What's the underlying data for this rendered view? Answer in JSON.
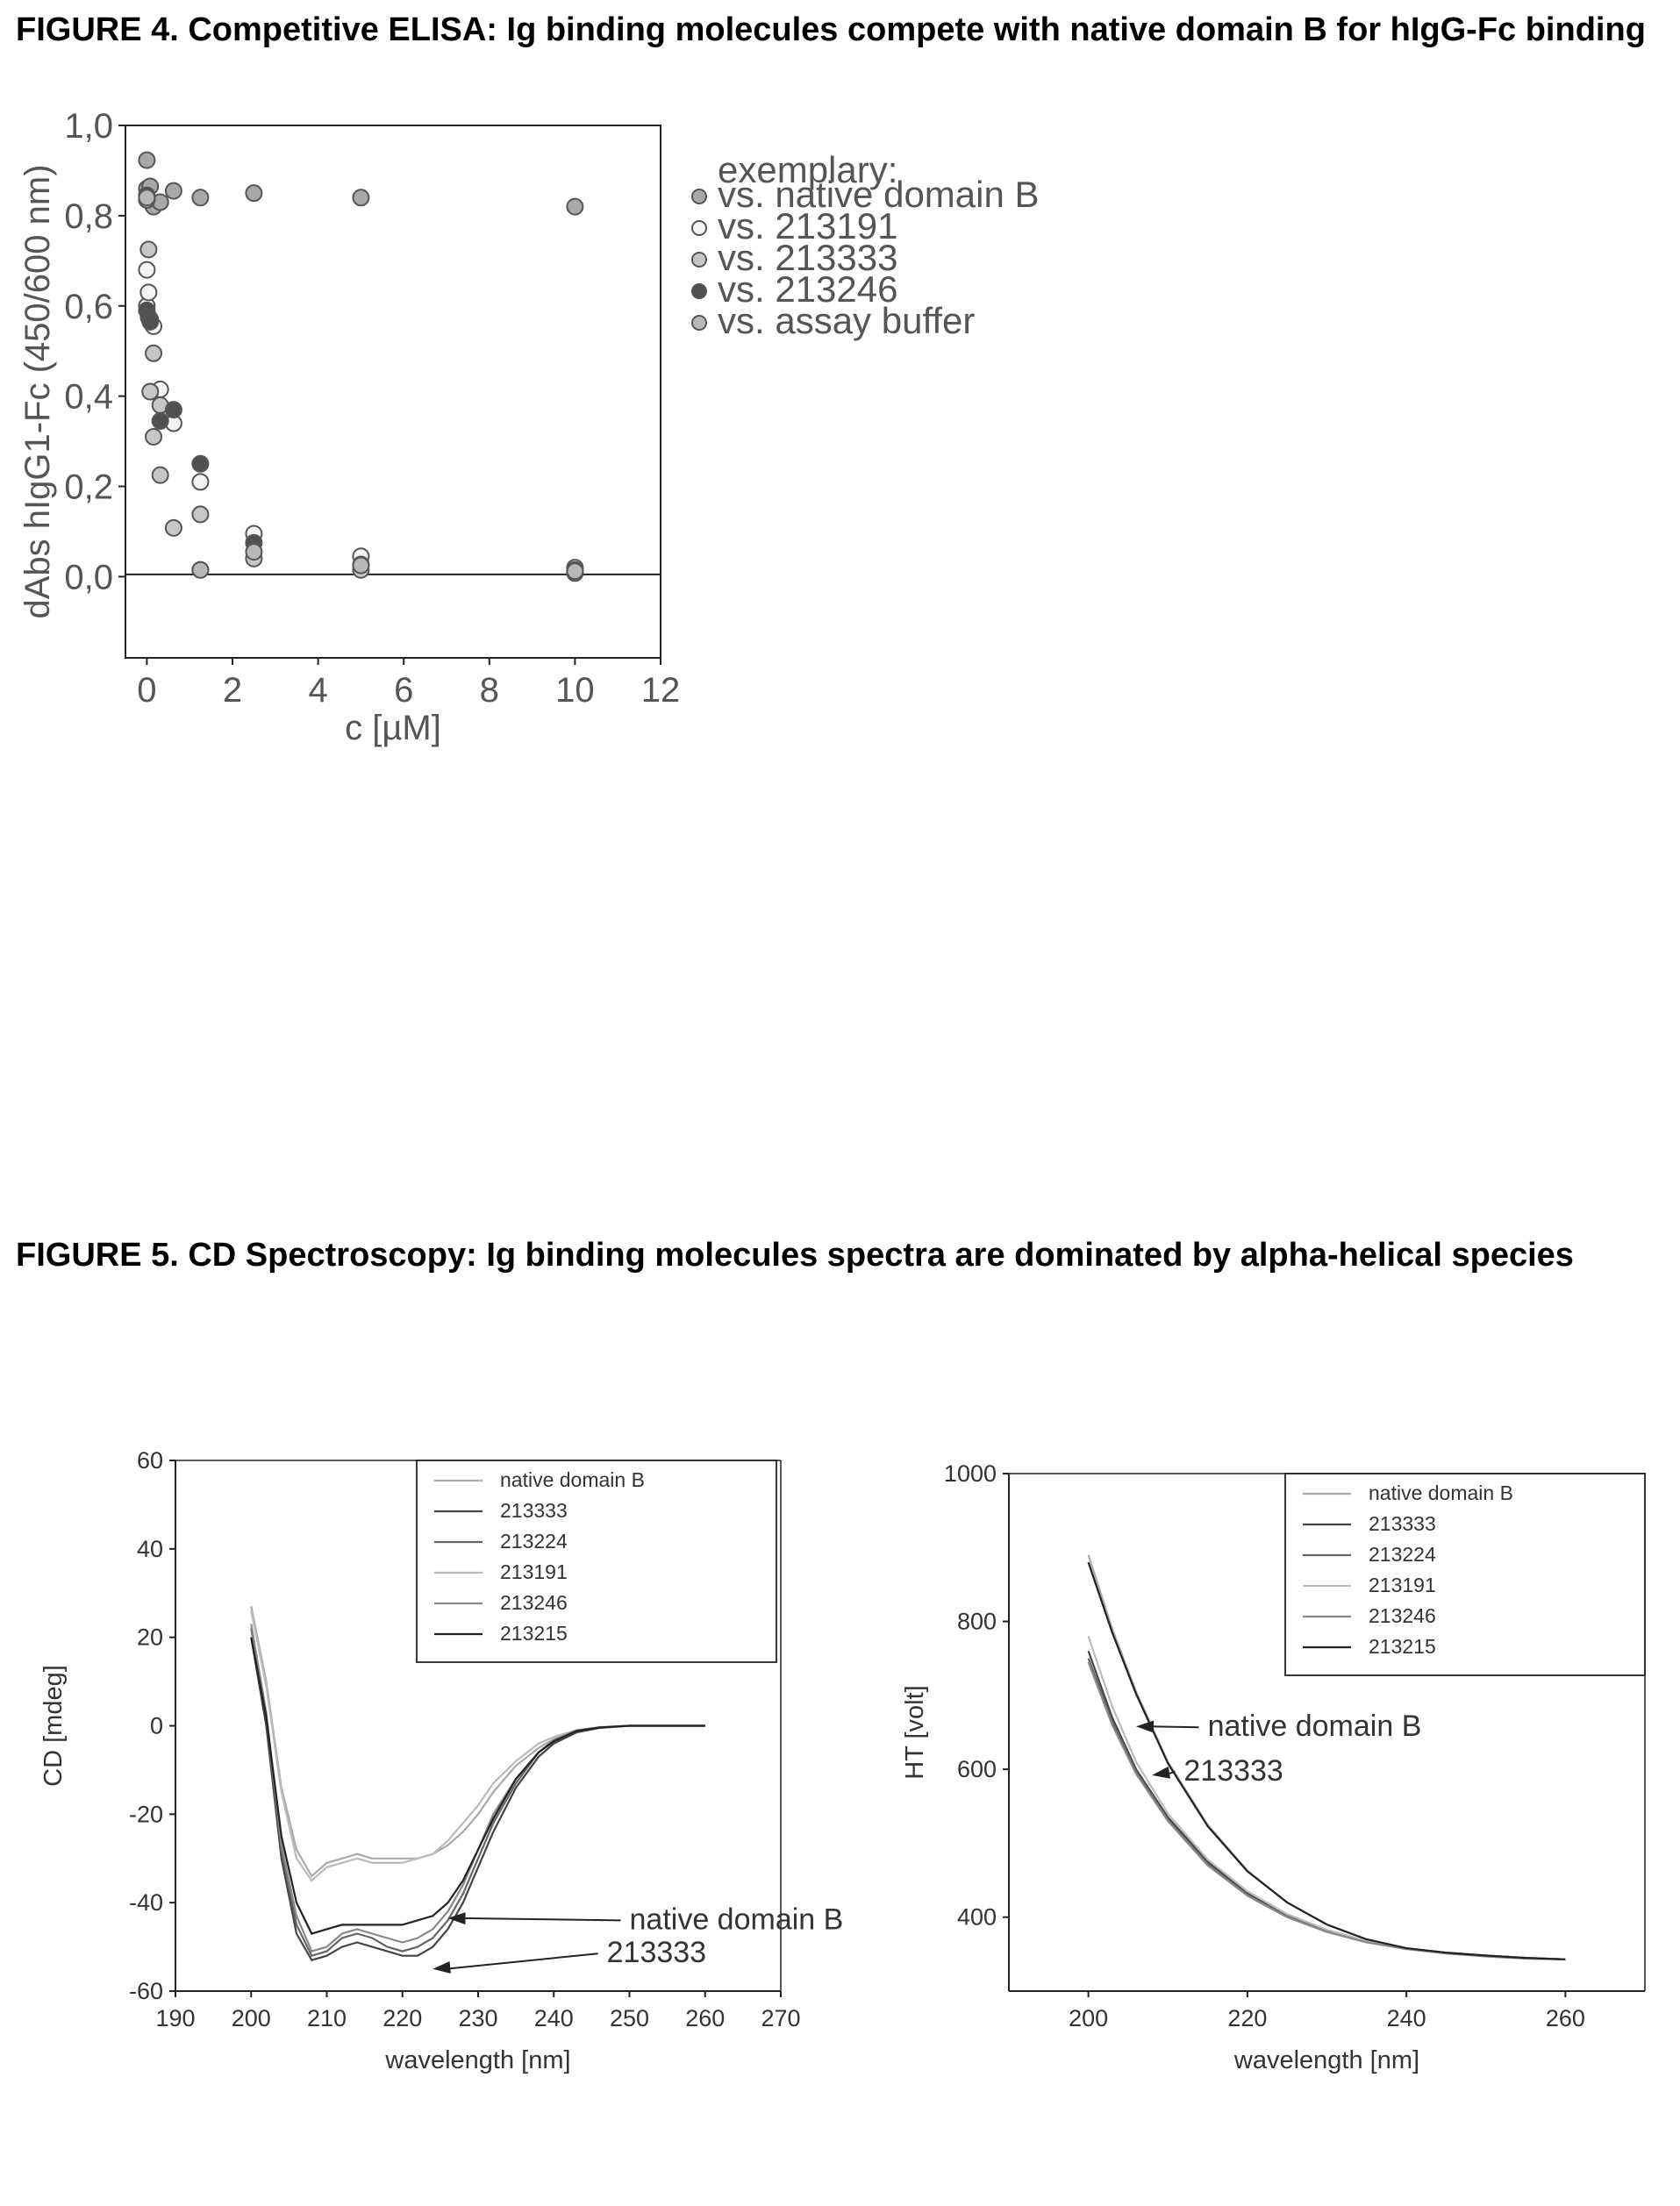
{
  "figure4": {
    "title": "FIGURE 4. Competitive ELISA: Ig binding molecules compete with native domain B for hIgG-Fc binding"
  },
  "figure5": {
    "title": "FIGURE 5. CD Spectroscopy: Ig binding molecules spectra are dominated by alpha-helical species"
  },
  "colors": {
    "native_domain_b": "#a8a8a8",
    "s213191": "#f4f4f4",
    "s213333": "#c6c6c6",
    "s213246": "#505050",
    "assay_buffer": "#b8b8b8",
    "line_native": "#aaaaaa",
    "line_213333": "#444444",
    "line_213224": "#666666",
    "line_213191": "#bbbbbb",
    "line_213246": "#888888",
    "line_213215": "#222222"
  },
  "chart_data": [
    {
      "id": "elisa",
      "type": "scatter",
      "title": "",
      "xlabel": "c [µM]",
      "ylabel": "dAbs hIgG1-Fc (450/600 nm)",
      "xlim": [
        -0.5,
        12
      ],
      "ylim": [
        -0.18,
        1.0
      ],
      "xticks": [
        0,
        2,
        4,
        6,
        8,
        10,
        12
      ],
      "xtick_labels": [
        "0",
        "2",
        "4",
        "6",
        "8",
        "10",
        "12"
      ],
      "yticks": [
        0.0,
        0.2,
        0.4,
        0.6,
        0.8,
        1.0
      ],
      "ytick_labels": [
        "0,0",
        "0,2",
        "0,4",
        "0,6",
        "0,8",
        "1,0"
      ],
      "reference_line_y": 0.005,
      "legend_placement": "right",
      "legend_header": "exemplary:",
      "series": [
        {
          "name": "vs. native domain B",
          "color_key": "native_domain_b",
          "x": [
            0.0,
            0.0,
            0.078,
            0.156,
            0.313,
            0.625,
            1.25,
            2.5,
            5.0,
            10.0
          ],
          "y": [
            0.923,
            0.86,
            0.865,
            0.82,
            0.83,
            0.855,
            0.84,
            0.85,
            0.84,
            0.82
          ]
        },
        {
          "name": "vs. 213191",
          "color_key": "s213191",
          "x": [
            0.0,
            0.0,
            0.04,
            0.078,
            0.156,
            0.313,
            0.625,
            1.25,
            2.5,
            5.0,
            10.0
          ],
          "y": [
            0.68,
            0.6,
            0.63,
            0.57,
            0.555,
            0.415,
            0.34,
            0.21,
            0.095,
            0.045,
            0.02
          ]
        },
        {
          "name": "vs. 213333",
          "color_key": "s213333",
          "x": [
            0.0,
            0.04,
            0.078,
            0.156,
            0.156,
            0.313,
            0.313,
            0.625,
            1.25,
            1.25,
            2.5,
            5.0,
            10.0
          ],
          "y": [
            0.835,
            0.725,
            0.41,
            0.495,
            0.31,
            0.38,
            0.225,
            0.108,
            0.138,
            0.015,
            0.04,
            0.015,
            0.008
          ]
        },
        {
          "name": "vs. 213246",
          "color_key": "s213246",
          "x": [
            0.0,
            0.0,
            0.04,
            0.078,
            0.313,
            0.625,
            1.25,
            2.5,
            5.0,
            10.0
          ],
          "y": [
            0.845,
            0.59,
            0.575,
            0.565,
            0.345,
            0.37,
            0.25,
            0.075,
            0.027,
            0.015
          ]
        },
        {
          "name": "vs. assay buffer",
          "color_key": "assay_buffer",
          "x": [
            0.0,
            1.25,
            2.5,
            5.0,
            10.0
          ],
          "y": [
            0.84,
            0.015,
            0.055,
            0.025,
            0.012
          ]
        }
      ]
    },
    {
      "id": "cd",
      "type": "line",
      "title": "",
      "xlabel": "wavelength  [nm]",
      "ylabel": "CD [mdeg]",
      "xlim": [
        190,
        270
      ],
      "ylim": [
        -60,
        60
      ],
      "xticks": [
        190,
        200,
        210,
        220,
        230,
        240,
        250,
        260,
        270
      ],
      "xtick_labels": [
        "190",
        "200",
        "210",
        "220",
        "230",
        "240",
        "250",
        "260",
        "270"
      ],
      "yticks": [
        -60,
        -40,
        -20,
        0,
        20,
        40,
        60
      ],
      "ytick_labels": [
        "-60",
        "-40",
        "-20",
        "0",
        "20",
        "40",
        "60"
      ],
      "legend_placement": "top-right",
      "annotations": [
        {
          "text": "native domain B",
          "x": 250,
          "y": -46,
          "arrow_to": [
            226,
            -43.5
          ]
        },
        {
          "text": "213333",
          "x": 247,
          "y": -53.5,
          "arrow_to": [
            224,
            -55
          ]
        }
      ],
      "series": [
        {
          "name": "native domain B",
          "color_key": "line_native",
          "x": [
            200,
            202,
            204,
            206,
            208,
            210,
            212,
            214,
            216,
            218,
            220,
            222,
            224,
            226,
            228,
            230,
            232,
            235,
            238,
            240,
            243,
            246,
            250,
            255,
            260
          ],
          "y": [
            27,
            10,
            -14,
            -28,
            -34,
            -31,
            -30,
            -29,
            -30,
            -30,
            -30,
            -30,
            -29,
            -27,
            -24,
            -20,
            -15,
            -9,
            -5,
            -3,
            -1,
            -0.4,
            0,
            0,
            0
          ]
        },
        {
          "name": "213333",
          "color_key": "line_213333",
          "x": [
            200,
            202,
            204,
            206,
            208,
            210,
            212,
            214,
            216,
            218,
            220,
            222,
            224,
            226,
            228,
            230,
            232,
            235,
            238,
            240,
            243,
            246,
            250,
            255,
            260
          ],
          "y": [
            20,
            0,
            -30,
            -47,
            -53,
            -52,
            -50,
            -49,
            -50,
            -51,
            -52,
            -52,
            -50,
            -46,
            -40,
            -32,
            -24,
            -14,
            -7,
            -4,
            -1.5,
            -0.5,
            0,
            0,
            0
          ]
        },
        {
          "name": "213224",
          "color_key": "line_213224",
          "x": [
            200,
            202,
            204,
            206,
            208,
            210,
            212,
            214,
            216,
            218,
            220,
            222,
            224,
            226,
            228,
            230,
            232,
            235,
            238,
            240,
            243,
            246,
            250,
            255,
            260
          ],
          "y": [
            22,
            2,
            -28,
            -45,
            -52,
            -51,
            -48,
            -47,
            -48,
            -50,
            -51,
            -50,
            -48,
            -44,
            -38,
            -30,
            -22,
            -13,
            -6,
            -3.5,
            -1.2,
            -0.4,
            0,
            0,
            0
          ]
        },
        {
          "name": "213191",
          "color_key": "line_213191",
          "x": [
            200,
            202,
            204,
            206,
            208,
            210,
            212,
            214,
            216,
            218,
            220,
            222,
            224,
            226,
            228,
            230,
            232,
            235,
            238,
            240,
            243,
            246,
            250,
            255,
            260
          ],
          "y": [
            26,
            9,
            -15,
            -30,
            -35,
            -32,
            -31,
            -30,
            -31,
            -31,
            -31,
            -30,
            -29,
            -26,
            -22,
            -18,
            -13,
            -8,
            -4,
            -2.5,
            -1,
            -0.3,
            0,
            0,
            0
          ]
        },
        {
          "name": "213246",
          "color_key": "line_213246",
          "x": [
            200,
            202,
            204,
            206,
            208,
            210,
            212,
            214,
            216,
            218,
            220,
            222,
            224,
            226,
            228,
            230,
            232,
            235,
            238,
            240,
            243,
            246,
            250,
            255,
            260
          ],
          "y": [
            23,
            3,
            -27,
            -43,
            -51,
            -50,
            -47,
            -46,
            -47,
            -48,
            -49,
            -48,
            -46,
            -42,
            -36,
            -28,
            -20,
            -12,
            -6,
            -3.2,
            -1.1,
            -0.4,
            0,
            0,
            0
          ]
        },
        {
          "name": "213215",
          "color_key": "line_213215",
          "x": [
            200,
            202,
            204,
            206,
            208,
            210,
            212,
            214,
            216,
            218,
            220,
            222,
            224,
            226,
            228,
            230,
            232,
            235,
            238,
            240,
            243,
            246,
            250,
            255,
            260
          ],
          "y": [
            20,
            2,
            -25,
            -40,
            -47,
            -46,
            -45,
            -45,
            -45,
            -45,
            -45,
            -44,
            -43,
            -40,
            -35,
            -28,
            -21,
            -12,
            -6,
            -3.5,
            -1.2,
            -0.4,
            0,
            0,
            0
          ]
        }
      ]
    },
    {
      "id": "ht",
      "type": "line",
      "title": "",
      "xlabel": "wavelength  [nm]",
      "ylabel": "HT [volt]",
      "xlim": [
        190,
        270
      ],
      "ylim": [
        300,
        1000
      ],
      "xticks": [
        200,
        220,
        240,
        260
      ],
      "xtick_labels": [
        "200",
        "220",
        "240",
        "260"
      ],
      "yticks": [
        400,
        600,
        800,
        1000
      ],
      "ytick_labels": [
        "400",
        "600",
        "800",
        "1000"
      ],
      "legend_placement": "top-right",
      "annotations": [
        {
          "text": "native domain B",
          "x": 215,
          "y": 645,
          "arrow_to": [
            206,
            658
          ]
        },
        {
          "text": "213333",
          "x": 212,
          "y": 585,
          "arrow_to": [
            208,
            592
          ]
        }
      ],
      "series": [
        {
          "name": "native domain B",
          "color_key": "line_native",
          "x": [
            200,
            203,
            206,
            210,
            215,
            220,
            225,
            230,
            235,
            240,
            245,
            250,
            255,
            260
          ],
          "y": [
            890,
            790,
            705,
            610,
            525,
            463,
            420,
            390,
            370,
            358,
            352,
            348,
            345,
            343
          ]
        },
        {
          "name": "213333",
          "color_key": "line_213333",
          "x": [
            200,
            203,
            206,
            210,
            215,
            220,
            225,
            230,
            235,
            240,
            245,
            250,
            255,
            260
          ],
          "y": [
            760,
            670,
            600,
            535,
            475,
            432,
            402,
            382,
            368,
            358,
            352,
            348,
            345,
            343
          ]
        },
        {
          "name": "213224",
          "color_key": "line_213224",
          "x": [
            200,
            203,
            206,
            210,
            215,
            220,
            225,
            230,
            235,
            240,
            245,
            250,
            255,
            260
          ],
          "y": [
            750,
            665,
            597,
            532,
            472,
            430,
            401,
            381,
            367,
            357,
            351,
            347,
            344,
            343
          ]
        },
        {
          "name": "213191",
          "color_key": "line_213191",
          "x": [
            200,
            203,
            206,
            210,
            215,
            220,
            225,
            230,
            235,
            240,
            245,
            250,
            255,
            260
          ],
          "y": [
            780,
            685,
            610,
            540,
            478,
            435,
            404,
            383,
            368,
            358,
            352,
            348,
            345,
            343
          ]
        },
        {
          "name": "213246",
          "color_key": "line_213246",
          "x": [
            200,
            203,
            206,
            210,
            215,
            220,
            225,
            230,
            235,
            240,
            245,
            250,
            255,
            260
          ],
          "y": [
            745,
            660,
            594,
            530,
            470,
            429,
            400,
            380,
            366,
            357,
            351,
            347,
            344,
            343
          ]
        },
        {
          "name": "213215",
          "color_key": "line_213215",
          "x": [
            200,
            203,
            206,
            210,
            215,
            220,
            225,
            230,
            235,
            240,
            245,
            250,
            255,
            260
          ],
          "y": [
            880,
            785,
            702,
            608,
            523,
            462,
            420,
            390,
            370,
            358,
            352,
            348,
            345,
            343
          ]
        }
      ]
    }
  ]
}
